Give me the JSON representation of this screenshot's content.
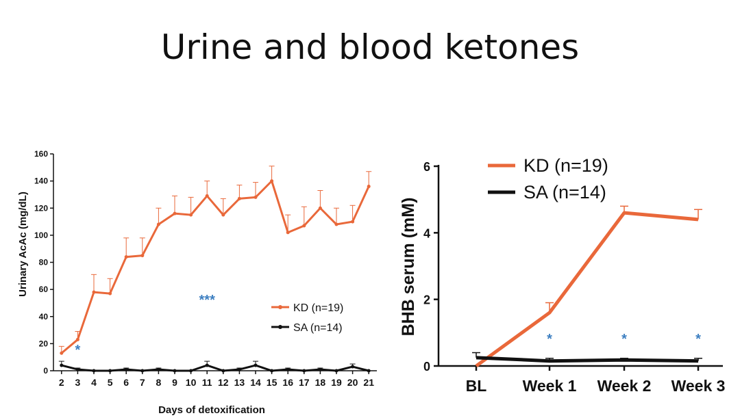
{
  "slide": {
    "title": "Urine and blood ketones"
  },
  "colors": {
    "kd": "#e9683a",
    "sa": "#111111",
    "star": "#3d7fc1"
  },
  "chart_data": [
    {
      "type": "line",
      "xlabel": "Days of detoxification",
      "ylabel": "Urinary AcAc (mg/dL)",
      "ylim": [
        0,
        160
      ],
      "yticks": [
        0,
        20,
        40,
        60,
        80,
        100,
        120,
        140,
        160
      ],
      "x": [
        2,
        3,
        4,
        5,
        6,
        7,
        8,
        9,
        10,
        11,
        12,
        13,
        14,
        15,
        16,
        17,
        18,
        19,
        20,
        21
      ],
      "series": [
        {
          "name": "KD (n=19)",
          "values": [
            13,
            23,
            58,
            57,
            84,
            85,
            108,
            116,
            115,
            129,
            115,
            127,
            128,
            140,
            102,
            107,
            120,
            108,
            110,
            136
          ],
          "errors": [
            5,
            6,
            13,
            11,
            14,
            13,
            12,
            13,
            13,
            11,
            12,
            10,
            11,
            11,
            13,
            14,
            13,
            12,
            12,
            11
          ]
        },
        {
          "name": "SA (n=14)",
          "values": [
            4,
            1,
            0,
            0,
            1,
            0,
            1,
            0,
            0,
            4,
            0,
            1,
            4,
            0,
            1,
            0,
            1,
            0,
            3,
            0
          ],
          "errors": [
            3,
            1,
            0,
            0,
            1,
            0,
            1,
            0,
            0,
            3,
            0,
            1,
            3,
            0,
            1,
            0,
            1,
            0,
            2,
            0
          ]
        }
      ],
      "annotations": [
        {
          "text": "*",
          "x": 3,
          "y": 12
        },
        {
          "text": "***",
          "x": 11,
          "y": 49
        }
      ],
      "legend_position": "lower-right"
    },
    {
      "type": "line",
      "xlabel": "",
      "ylabel": "BHB serum (mM)",
      "ylim": [
        0,
        6
      ],
      "yticks": [
        0,
        2,
        4,
        6
      ],
      "categories": [
        "BL",
        "Week 1",
        "Week 2",
        "Week 3"
      ],
      "series": [
        {
          "name": "KD (n=19)",
          "values": [
            0.0,
            1.6,
            4.6,
            4.4
          ],
          "errors": [
            0.0,
            0.3,
            0.2,
            0.3
          ]
        },
        {
          "name": "SA (n=14)",
          "values": [
            0.25,
            0.15,
            0.18,
            0.15
          ],
          "errors": [
            0.15,
            0.08,
            0.05,
            0.08
          ]
        }
      ],
      "annotations": [
        {
          "text": "*",
          "category": "Week 1"
        },
        {
          "text": "*",
          "category": "Week 2"
        },
        {
          "text": "*",
          "category": "Week 3"
        }
      ],
      "legend_position": "top-left"
    }
  ]
}
